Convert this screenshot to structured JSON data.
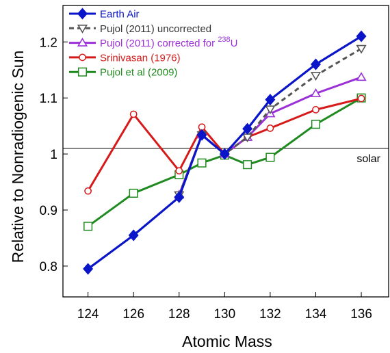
{
  "chart_data": {
    "type": "line",
    "title": "",
    "xlabel": "Atomic Mass",
    "ylabel": "Relative to Nonradiogenic Sun",
    "xlim": [
      122.9,
      137.2
    ],
    "ylim": [
      0.745,
      1.265
    ],
    "xticks": [
      124,
      126,
      128,
      130,
      132,
      134,
      136
    ],
    "yticks": [
      0.8,
      0.9,
      1,
      1.1,
      1.2
    ],
    "ytick_labels": [
      "0.8",
      "0.9",
      "1",
      "1.1",
      "1.2"
    ],
    "grid": false,
    "legend_position": "top-left",
    "reference_line": {
      "y": 1.01,
      "label": "solar"
    },
    "series": [
      {
        "name": "Earth Air",
        "color": "#0a14c8",
        "marker": "filled-diamond",
        "dash": "solid",
        "x": [
          124,
          126,
          128,
          129,
          130,
          131,
          132,
          134,
          136
        ],
        "y": [
          0.795,
          0.855,
          0.923,
          1.034,
          1.0,
          1.045,
          1.097,
          1.16,
          1.21
        ]
      },
      {
        "name": "Pujol (2011) uncorrected",
        "color": "#555555",
        "marker": "open-triangle-down",
        "dash": "dashed",
        "x": [
          128,
          129,
          130,
          131,
          132,
          134,
          136
        ],
        "y": [
          0.927,
          1.034,
          1.0,
          1.03,
          1.08,
          1.14,
          1.188
        ]
      },
      {
        "name": "Pujol (2011) corrected for ",
        "name_sup": "238",
        "name_suffix": "U",
        "color": "#9b30d8",
        "marker": "open-triangle-up",
        "dash": "solid",
        "x": [
          128,
          129,
          130,
          131,
          132,
          134,
          136
        ],
        "y": [
          0.927,
          1.034,
          1.0,
          1.03,
          1.072,
          1.108,
          1.137
        ]
      },
      {
        "name": "Srinivasan (1976)",
        "color": "#d61a1a",
        "marker": "open-circle",
        "dash": "solid",
        "x": [
          124,
          126,
          128,
          129,
          130,
          131,
          132,
          134,
          136
        ],
        "y": [
          0.934,
          1.071,
          0.97,
          1.048,
          1.0,
          1.03,
          1.046,
          1.079,
          1.099
        ]
      },
      {
        "name": "Pujol et al (2009)",
        "color": "#1f8a1f",
        "marker": "open-square",
        "dash": "solid",
        "x": [
          124,
          126,
          128,
          129,
          130,
          131,
          132,
          134,
          136
        ],
        "y": [
          0.871,
          0.93,
          0.963,
          0.984,
          0.998,
          0.981,
          0.994,
          1.053,
          1.1
        ]
      }
    ]
  }
}
